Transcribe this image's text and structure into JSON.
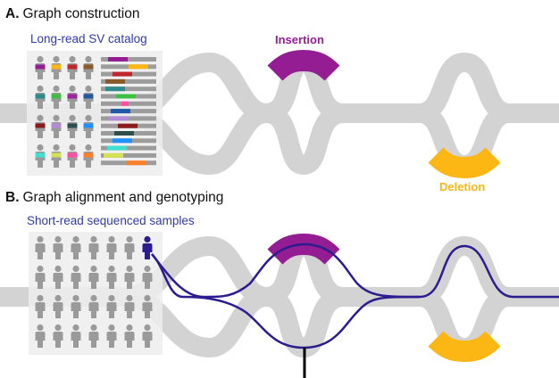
{
  "panel_a": {
    "letter": "A.",
    "title": "Graph construction",
    "subtitle": "Long-read SV catalog",
    "insertion_label": "Insertion",
    "deletion_label": "Deletion"
  },
  "panel_b": {
    "letter": "B.",
    "title": "Graph alignment and genotyping",
    "subtitle": "Short-read sequenced samples"
  },
  "colors": {
    "graph_gray": "#d3d3d3",
    "insertion": "#951d93",
    "deletion": "#fdb714",
    "path": "#2b1c8f",
    "subtitle_text": "#2f3aa6",
    "person_gray": "#9a9a9a",
    "highlight_person": "#2b1c8f"
  },
  "catalog_person_colors": [
    [
      "#951d93",
      "#fdb714",
      "#c0272d",
      "#8b5a2b"
    ],
    [
      "#2e8b8b",
      "#3fbf3f",
      "#a020a0",
      "#1e5aa8"
    ],
    [
      "#8b1a1a",
      "#b48bd8",
      "#2f4f4f",
      "#1e90ff"
    ],
    [
      "#40e0d0",
      "#d4e157",
      "#ff4fa3",
      "#ff7f27"
    ]
  ],
  "read_bar_colors": [
    [
      "#951d93"
    ],
    [
      "#fdb714"
    ],
    [
      "#c0272d"
    ],
    [
      "#8b5a2b"
    ],
    [
      "#2e8b8b"
    ],
    [
      "#3fbf3f"
    ],
    [
      "#ff4fa3"
    ],
    [
      "#1e5aa8"
    ],
    [
      "#b48bd8"
    ],
    [
      "#8b1a1a"
    ],
    [
      "#2f4f4f"
    ],
    [
      "#1e90ff"
    ],
    [
      "#40e0d0"
    ],
    [
      "#d4e157"
    ],
    [
      "#ff7f27"
    ]
  ]
}
